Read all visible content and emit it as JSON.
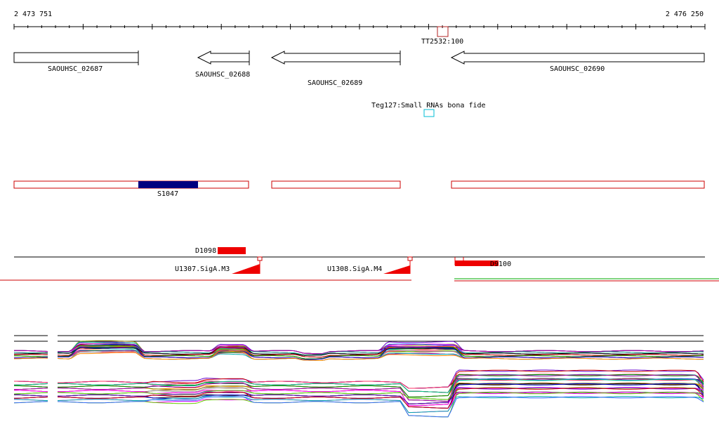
{
  "ruler": {
    "start_label": "2 473 751",
    "end_label": "2 476 250"
  },
  "terminator": {
    "label": "TT2532:100",
    "color": "#b22222"
  },
  "genes": [
    {
      "label": "SAOUHSC_02687",
      "direction": "right"
    },
    {
      "label": "SAOUHSC_02688",
      "direction": "left"
    },
    {
      "label": "SAOUHSC_02689",
      "direction": "left"
    },
    {
      "label": "SAOUHSC_02690",
      "direction": "left"
    }
  ],
  "small_rna": {
    "label": "Teg127:Small RNAs bona fide",
    "color": "#00bcd4"
  },
  "operon_track": {
    "box_color": "#cc0000",
    "feature": {
      "label": "S1047",
      "color": "#000080"
    }
  },
  "signals": {
    "d_feature": {
      "label": "D1098",
      "color": "#ee0000"
    },
    "promoters": [
      {
        "label": "U1307.SigA.M3",
        "color": "#ee0000"
      },
      {
        "label": "U1308.SigA.M4",
        "color": "#ee0000"
      }
    ],
    "right_feature": {
      "label": "D9100",
      "color": "#ee0000"
    }
  },
  "coverage_colors": [
    "#000000",
    "#cc0000",
    "#008800",
    "#0000cc",
    "#ff8800",
    "#aa00aa",
    "#00aaaa",
    "#888800",
    "#ff00ff",
    "#3366ff",
    "#996633",
    "#66cc00",
    "#ff3366",
    "#999999",
    "#6600cc",
    "#00cc88"
  ]
}
